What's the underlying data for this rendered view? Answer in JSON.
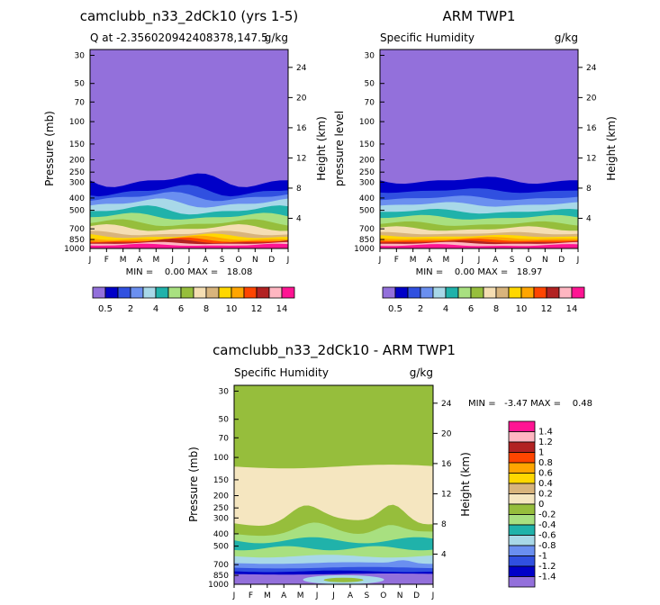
{
  "chart_data": [
    {
      "type": "contour",
      "title": "camclubb_n33_2dCk10 (yrs 1-5)",
      "subtitle_left": "Q at -2.356020942408378,147.5",
      "subtitle_right": "g/kg",
      "ylabel": "Pressure (mb)",
      "ylabel_right": "Height (km)",
      "x_ticks": [
        "J",
        "F",
        "M",
        "A",
        "M",
        "J",
        "J",
        "A",
        "S",
        "O",
        "N",
        "D",
        "J"
      ],
      "y_ticks": [
        "30",
        "50",
        "70",
        "100",
        "150",
        "200",
        "250",
        "300",
        "400",
        "500",
        "700",
        "850",
        "1000"
      ],
      "y_ticks_right": [
        "24",
        "20",
        "16",
        "12",
        "8",
        "4"
      ],
      "stats": "MIN =    0.00 MAX =   18.08",
      "colorbar_labels": [
        "0.5",
        "2",
        "4",
        "6",
        "8",
        "10",
        "12",
        "14"
      ],
      "levels": [
        0.5,
        1,
        2,
        3,
        4,
        5,
        6,
        7,
        8,
        9,
        10,
        11,
        12,
        13,
        14
      ]
    },
    {
      "type": "contour",
      "title": "ARM TWP1",
      "subtitle_left": "Specific Humidity",
      "subtitle_right": "g/kg",
      "ylabel": "pressure level",
      "ylabel_right": "Height (km)",
      "x_ticks": [
        "J",
        "F",
        "M",
        "A",
        "M",
        "J",
        "J",
        "A",
        "S",
        "O",
        "N",
        "D",
        "J"
      ],
      "y_ticks": [
        "30",
        "50",
        "70",
        "100",
        "150",
        "200",
        "250",
        "300",
        "400",
        "500",
        "700",
        "850",
        "1000"
      ],
      "y_ticks_right": [
        "24",
        "20",
        "16",
        "12",
        "8",
        "4"
      ],
      "stats": "MIN =    0.00 MAX =   18.97",
      "colorbar_labels": [
        "0.5",
        "2",
        "4",
        "6",
        "8",
        "10",
        "12",
        "14"
      ],
      "levels": [
        0.5,
        1,
        2,
        3,
        4,
        5,
        6,
        7,
        8,
        9,
        10,
        11,
        12,
        13,
        14
      ]
    },
    {
      "type": "contour",
      "title": "camclubb_n33_2dCk10 - ARM TWP1",
      "subtitle_left": "Specific Humidity",
      "subtitle_right": "g/kg",
      "ylabel": "Pressure (mb)",
      "ylabel_right": "Height (km)",
      "x_ticks": [
        "J",
        "F",
        "M",
        "A",
        "M",
        "J",
        "J",
        "A",
        "S",
        "O",
        "N",
        "D",
        "J"
      ],
      "y_ticks": [
        "30",
        "50",
        "70",
        "100",
        "150",
        "200",
        "250",
        "300",
        "400",
        "500",
        "700",
        "850",
        "1000"
      ],
      "y_ticks_right": [
        "24",
        "20",
        "16",
        "12",
        "8",
        "4"
      ],
      "stats": "MIN =   -3.47 MAX =    0.48",
      "colorbar_labels": [
        "1.4",
        "1.2",
        "1",
        "0.8",
        "0.6",
        "0.4",
        "0.2",
        "0",
        "-0.2",
        "-0.4",
        "-0.6",
        "-0.8",
        "-1",
        "-1.2",
        "-1.4"
      ],
      "levels": [
        -1.4,
        -1.2,
        -1,
        -0.8,
        -0.6,
        -0.4,
        -0.2,
        0,
        0.2,
        0.4,
        0.6,
        0.8,
        1,
        1.2,
        1.4
      ]
    }
  ],
  "colors": {
    "abs_fill": [
      "#9370db",
      "#0000c8",
      "#3050e0",
      "#6a8ff0",
      "#a8d8e8",
      "#20b2aa",
      "#a8e080",
      "#96be3c",
      "#f5deb3",
      "#d8b47c",
      "#ffd700",
      "#ffa500",
      "#ff4500",
      "#b22222",
      "#ffb6c1",
      "#ff1493"
    ],
    "diff_fill": [
      "#9370db",
      "#0000c8",
      "#3050e0",
      "#6a8ff0",
      "#a8d8e8",
      "#20b2aa",
      "#a8e080",
      "#96be3c",
      "#f5e6c0",
      "#d8b47c",
      "#ffd700",
      "#ffa500",
      "#ff4500",
      "#b22222",
      "#ffb6c1",
      "#ff1493"
    ]
  }
}
